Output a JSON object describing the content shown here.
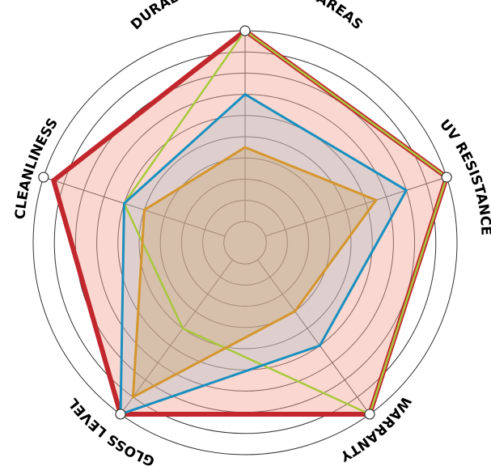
{
  "chart_data": {
    "type": "radar",
    "axes": [
      "DURABILITY IN COASTAL AREAS",
      "UV RESISTANCE",
      "WARRANTY",
      "GLOSS LEVEL",
      "CLEANLINESS"
    ],
    "range": [
      0,
      10
    ],
    "rings": 10,
    "series": [
      {
        "values": [
          10,
          10,
          10,
          10,
          9.5
        ],
        "stroke": "#c1272d",
        "fill": "#f4a99a",
        "fill_opacity": 0.45,
        "width": 6
      },
      {
        "values": [
          10,
          10,
          10,
          5,
          6
        ],
        "stroke": "#a8c83c",
        "fill": "#c8b88a",
        "fill_opacity": 0.0,
        "width": 2.5
      },
      {
        "values": [
          7,
          8,
          6,
          10,
          6
        ],
        "stroke": "#1a8fbf",
        "fill": "#9fb8c8",
        "fill_opacity": 0.3,
        "width": 3
      },
      {
        "values": [
          4.5,
          6.5,
          4,
          9,
          5
        ],
        "stroke": "#d4962e",
        "fill": "#c9a06a",
        "fill_opacity": 0.35,
        "width": 3
      }
    ],
    "colors": {
      "grid": "#333333",
      "ring_marker": "#ffffff"
    }
  }
}
